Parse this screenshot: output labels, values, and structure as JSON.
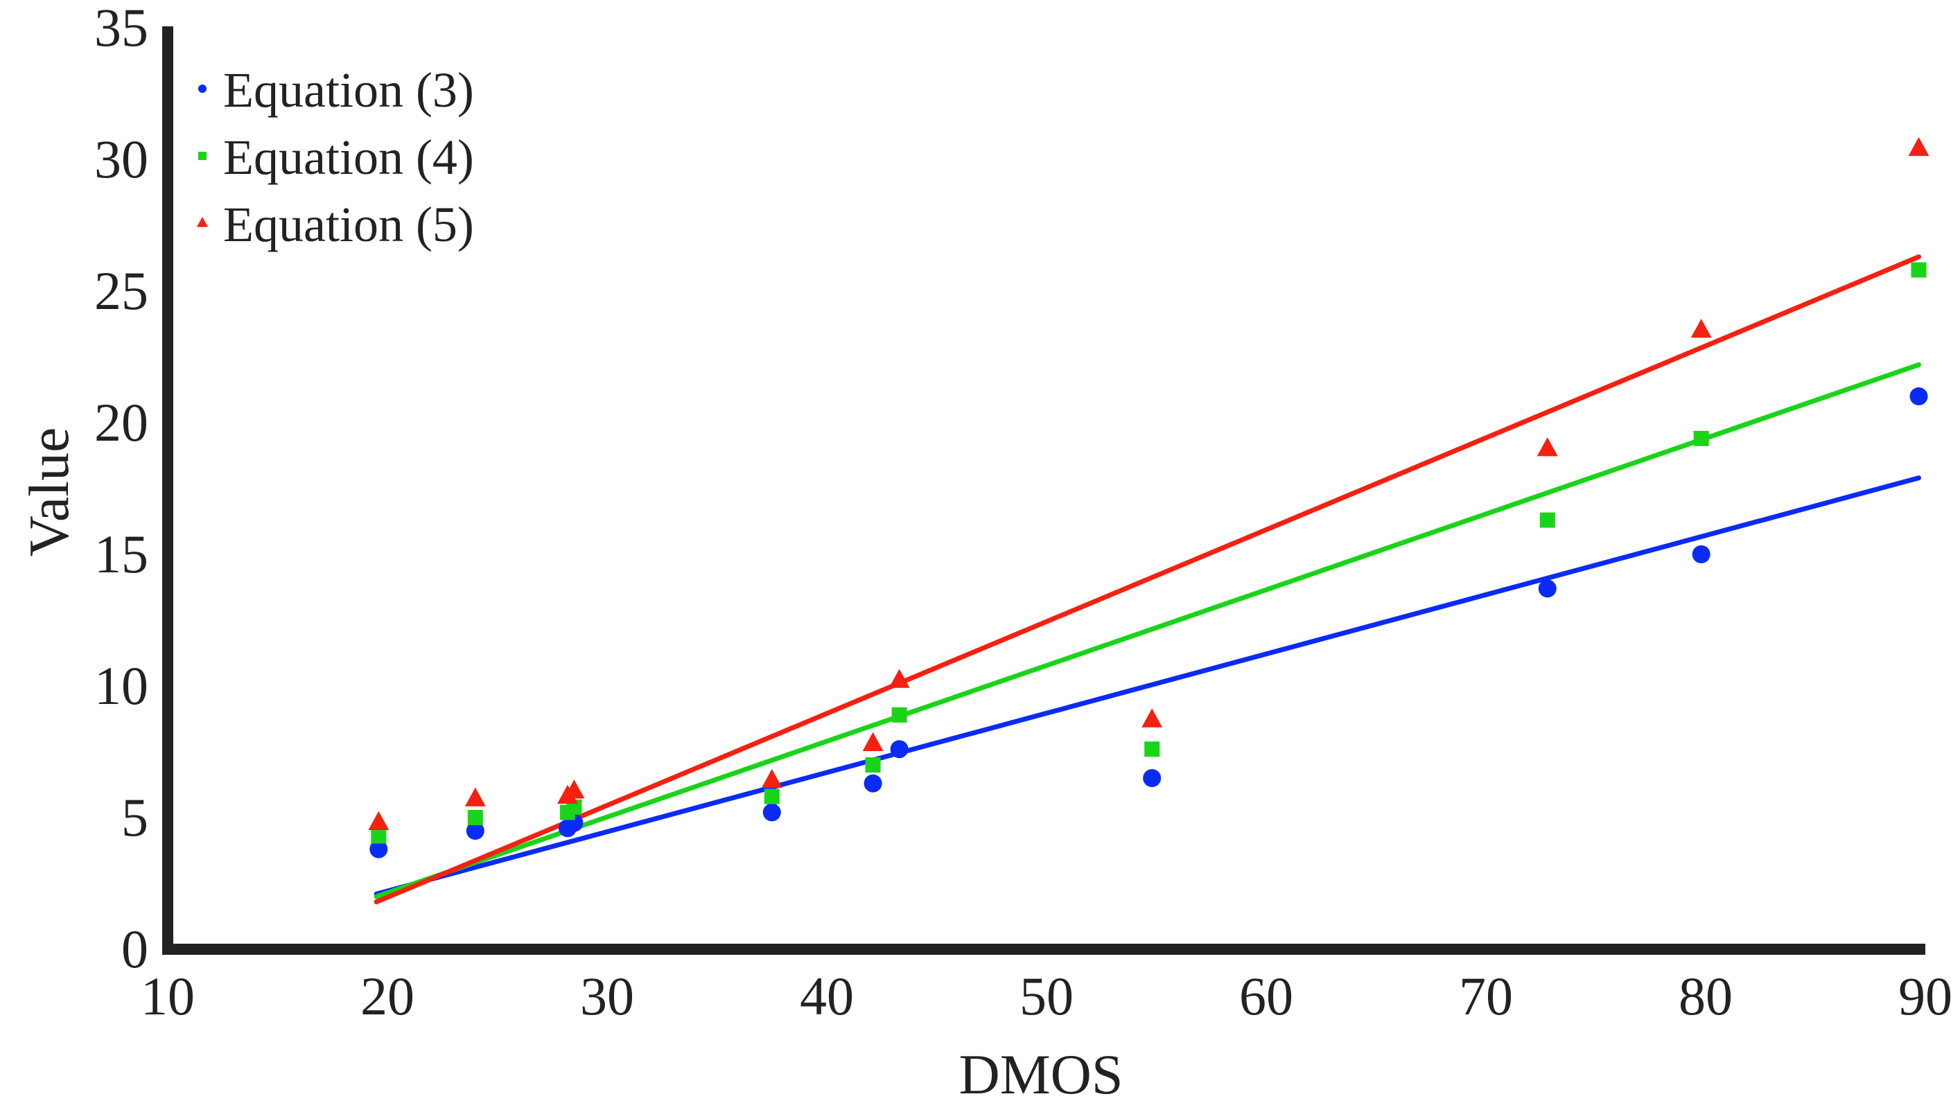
{
  "chart_data": {
    "type": "scatter",
    "title": "",
    "xlabel": "DMOS",
    "ylabel": "Value",
    "xlim": [
      10,
      90
    ],
    "ylim": [
      0,
      35
    ],
    "xticks": [
      10,
      20,
      30,
      40,
      50,
      60,
      70,
      80,
      90
    ],
    "yticks": [
      0,
      5,
      10,
      15,
      20,
      25,
      30,
      35
    ],
    "grid": false,
    "legend_position": "top-left",
    "x": [
      19.6,
      24.0,
      28.2,
      28.5,
      37.5,
      42.1,
      43.3,
      54.8,
      72.8,
      79.8,
      89.7
    ],
    "series": [
      {
        "name": "Equation (3)",
        "marker": "circle",
        "color": "#0a2bf5",
        "values": [
          3.8,
          4.5,
          4.6,
          4.8,
          5.2,
          6.3,
          7.6,
          6.5,
          13.7,
          15.0,
          21.0
        ],
        "fit": {
          "x": [
            19.5,
            89.7
          ],
          "y": [
            2.1,
            17.9
          ]
        }
      },
      {
        "name": "Equation (4)",
        "marker": "square",
        "color": "#19d419",
        "values": [
          4.3,
          5.0,
          5.2,
          5.4,
          5.8,
          7.0,
          8.9,
          7.6,
          16.3,
          19.4,
          25.8
        ],
        "fit": {
          "x": [
            19.5,
            89.7
          ],
          "y": [
            2.0,
            22.2
          ]
        }
      },
      {
        "name": "Equation (5)",
        "marker": "triangle",
        "color": "#f5200f",
        "values": [
          4.8,
          5.7,
          5.8,
          6.0,
          6.4,
          7.8,
          10.2,
          8.7,
          19.0,
          23.5,
          30.4
        ],
        "fit": {
          "x": [
            19.5,
            89.7
          ],
          "y": [
            1.8,
            26.3
          ]
        }
      }
    ]
  }
}
